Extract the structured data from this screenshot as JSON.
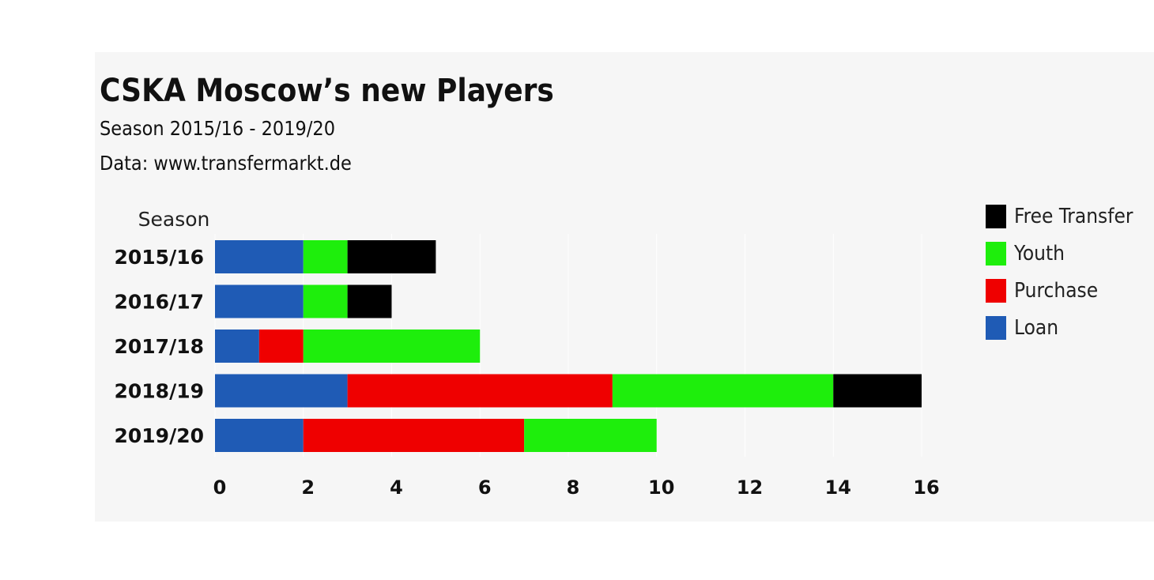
{
  "title": "CSKA Moscow’s new Players",
  "subtitle": "Season 2015/16 - 2019/20",
  "source": "Data: www.transfermarkt.de",
  "chart_data": {
    "type": "bar",
    "orientation": "horizontal",
    "stacked": true,
    "title": "CSKA Moscow’s new Players",
    "ylabel": "Season",
    "xlabel": "",
    "categories": [
      "2015/16",
      "2016/17",
      "2017/18",
      "2018/19",
      "2019/20"
    ],
    "series": [
      {
        "name": "Loan",
        "color": "#1f5bb5",
        "values": [
          2,
          2,
          1,
          3,
          2
        ]
      },
      {
        "name": "Purchase",
        "color": "#ef0000",
        "values": [
          0,
          0,
          1,
          6,
          5
        ]
      },
      {
        "name": "Youth",
        "color": "#1eee0c",
        "values": [
          1,
          1,
          4,
          5,
          3
        ]
      },
      {
        "name": "Free Transfer",
        "color": "#000000",
        "values": [
          2,
          1,
          0,
          2,
          0
        ]
      }
    ],
    "xlim": [
      0,
      16
    ],
    "xticks": [
      "0",
      "2",
      "4",
      "6",
      "8",
      "10",
      "12",
      "14",
      "16"
    ],
    "legend": {
      "position": "right",
      "order": [
        "Free Transfer",
        "Youth",
        "Purchase",
        "Loan"
      ]
    },
    "grid": true
  }
}
